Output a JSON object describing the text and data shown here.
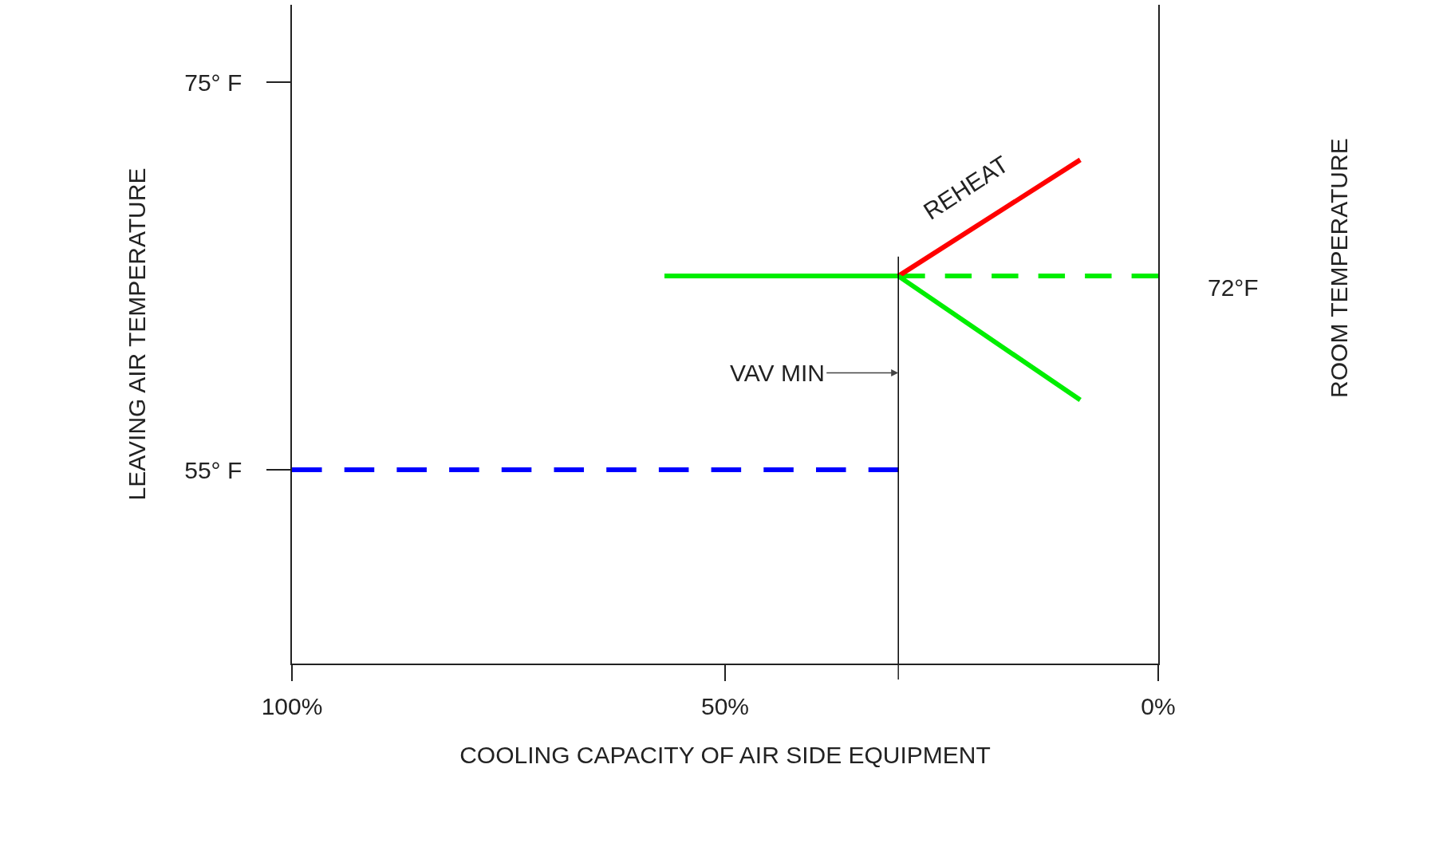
{
  "chart_data": {
    "type": "line",
    "xlabel": "COOLING CAPACITY OF AIR SIDE EQUIPMENT",
    "ylabel": "LEAVING AIR TEMPERATURE",
    "xlim": [
      100,
      0
    ],
    "xticks": [
      {
        "value": 100,
        "label": "100%"
      },
      {
        "value": 50,
        "label": "50%"
      },
      {
        "value": 30,
        "label": null
      },
      {
        "value": 0,
        "label": "0%"
      }
    ],
    "ylim": [
      45,
      79
    ],
    "yticks": [
      {
        "value": 75,
        "label": "75° F"
      },
      {
        "value": 55,
        "label": "55° F"
      }
    ],
    "grid": false,
    "legend": false,
    "marker": "none",
    "series": [
      {
        "color": "#0000ff",
        "line_style": "dashed",
        "x": [
          100,
          30
        ],
        "values": [
          55,
          55
        ]
      },
      {
        "color": "#00ee00",
        "line_style": "solid",
        "x": [
          57,
          30
        ],
        "values": [
          65,
          65
        ]
      },
      {
        "color": "#00ee00",
        "line_style": "dashed",
        "x": [
          30,
          0
        ],
        "values": [
          65,
          65
        ]
      },
      {
        "name": "REHEAT",
        "color": "#ff0000",
        "line_style": "solid",
        "x": [
          30,
          9
        ],
        "values": [
          65,
          71
        ]
      },
      {
        "color": "#00ee00",
        "line_style": "solid",
        "x": [
          30,
          9
        ],
        "values": [
          65,
          58.6
        ]
      },
      {
        "color": "#000000",
        "line_style": "solid",
        "x": [
          30,
          30
        ],
        "values": [
          45,
          66
        ]
      }
    ],
    "annotations": [
      {
        "text": "VAV MIN",
        "x": 30,
        "y": 60
      },
      {
        "text": "72°F",
        "x": 0,
        "y": 65
      },
      "ROOM TEMPERATURE"
    ]
  }
}
